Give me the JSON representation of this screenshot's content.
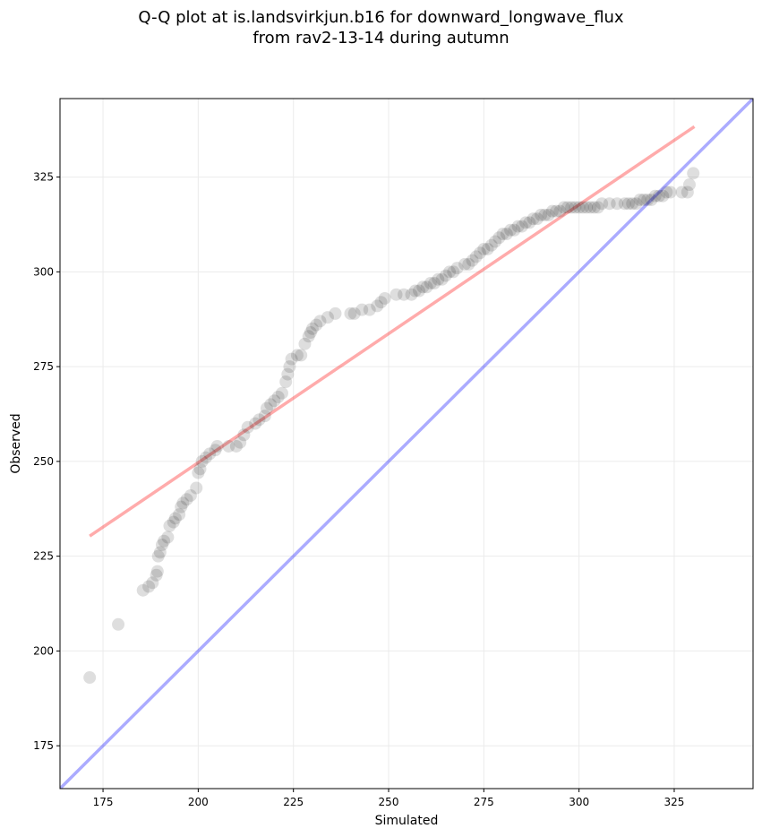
{
  "chart_data": {
    "type": "scatter",
    "title_line1": "Q-Q plot at is.landsvirkjun.b16 for downward_longwave_flux",
    "title_line2": "from rav2-13-14 during autumn",
    "xlabel": "Simulated",
    "ylabel": "Observed",
    "xlim": [
      163.7,
      345.7
    ],
    "ylim": [
      163.7,
      345.7
    ],
    "xticks": [
      175,
      200,
      225,
      250,
      275,
      300,
      325
    ],
    "yticks": [
      175,
      200,
      225,
      250,
      275,
      300,
      325
    ],
    "grid": true,
    "colors": {
      "points": "#000000",
      "fit_line": "#ff0000",
      "identity_line": "#0000ff"
    },
    "fit_line": {
      "x": [
        171.5,
        330.3
      ],
      "y": [
        230.3,
        338.3
      ]
    },
    "identity_line": {
      "x": [
        163.7,
        345.7
      ],
      "y": [
        163.7,
        345.7
      ]
    },
    "points": [
      [
        171.5,
        193
      ],
      [
        179,
        207
      ],
      [
        185.5,
        216
      ],
      [
        187,
        217
      ],
      [
        188,
        218
      ],
      [
        189,
        220
      ],
      [
        189.3,
        221
      ],
      [
        189.5,
        225
      ],
      [
        190,
        226
      ],
      [
        190.5,
        228
      ],
      [
        191,
        229
      ],
      [
        192,
        230
      ],
      [
        192.5,
        233
      ],
      [
        193.5,
        234
      ],
      [
        194,
        235
      ],
      [
        195,
        236
      ],
      [
        195.5,
        238
      ],
      [
        196,
        239
      ],
      [
        197,
        240
      ],
      [
        198,
        241
      ],
      [
        199.5,
        243
      ],
      [
        200,
        247
      ],
      [
        200.5,
        248
      ],
      [
        201,
        250
      ],
      [
        202,
        251
      ],
      [
        203,
        252
      ],
      [
        204.5,
        253
      ],
      [
        205,
        254
      ],
      [
        208,
        254
      ],
      [
        210,
        254
      ],
      [
        211,
        255
      ],
      [
        212,
        257
      ],
      [
        213,
        259
      ],
      [
        215,
        260
      ],
      [
        216,
        261
      ],
      [
        217.5,
        262
      ],
      [
        218,
        264
      ],
      [
        219,
        265
      ],
      [
        220,
        266
      ],
      [
        221,
        267
      ],
      [
        222,
        268
      ],
      [
        223,
        271
      ],
      [
        223.5,
        273
      ],
      [
        224,
        275
      ],
      [
        224.5,
        277
      ],
      [
        226,
        278
      ],
      [
        227,
        278
      ],
      [
        228,
        281
      ],
      [
        229,
        283
      ],
      [
        229.5,
        284
      ],
      [
        230,
        285
      ],
      [
        231,
        286
      ],
      [
        232,
        287
      ],
      [
        234,
        288
      ],
      [
        236,
        289
      ],
      [
        240,
        289
      ],
      [
        241,
        289
      ],
      [
        243,
        290
      ],
      [
        245,
        290
      ],
      [
        247,
        291
      ],
      [
        248,
        292
      ],
      [
        249,
        293
      ],
      [
        252,
        294
      ],
      [
        254,
        294
      ],
      [
        256,
        294
      ],
      [
        257,
        295
      ],
      [
        258,
        295
      ],
      [
        259,
        296
      ],
      [
        260,
        296
      ],
      [
        261,
        297
      ],
      [
        262,
        297
      ],
      [
        263,
        298
      ],
      [
        264,
        298
      ],
      [
        265,
        299
      ],
      [
        266,
        300
      ],
      [
        267,
        300
      ],
      [
        268,
        301
      ],
      [
        270,
        302
      ],
      [
        271,
        302
      ],
      [
        272,
        303
      ],
      [
        273,
        304
      ],
      [
        274,
        305
      ],
      [
        275,
        306
      ],
      [
        276,
        306
      ],
      [
        277,
        307
      ],
      [
        278,
        308
      ],
      [
        279,
        309
      ],
      [
        280,
        310
      ],
      [
        281,
        310
      ],
      [
        282,
        311
      ],
      [
        283,
        311
      ],
      [
        284,
        312
      ],
      [
        285,
        312
      ],
      [
        286,
        313
      ],
      [
        287,
        313
      ],
      [
        288,
        314
      ],
      [
        289,
        314
      ],
      [
        290,
        315
      ],
      [
        291,
        315
      ],
      [
        292,
        315
      ],
      [
        293,
        316
      ],
      [
        294,
        316
      ],
      [
        295,
        316
      ],
      [
        296,
        317
      ],
      [
        297,
        317
      ],
      [
        298,
        317
      ],
      [
        299,
        317
      ],
      [
        300,
        317
      ],
      [
        301,
        317
      ],
      [
        302,
        317
      ],
      [
        303,
        317
      ],
      [
        304,
        317
      ],
      [
        305,
        317
      ],
      [
        306,
        318
      ],
      [
        308,
        318
      ],
      [
        310,
        318
      ],
      [
        312,
        318
      ],
      [
        313,
        318
      ],
      [
        314,
        318
      ],
      [
        315,
        318
      ],
      [
        316,
        319
      ],
      [
        317,
        319
      ],
      [
        318,
        319
      ],
      [
        319,
        319
      ],
      [
        320,
        320
      ],
      [
        321,
        320
      ],
      [
        322,
        320
      ],
      [
        323,
        321
      ],
      [
        324,
        321
      ],
      [
        327,
        321
      ],
      [
        328.5,
        321
      ],
      [
        329,
        323
      ],
      [
        330,
        326
      ]
    ]
  }
}
